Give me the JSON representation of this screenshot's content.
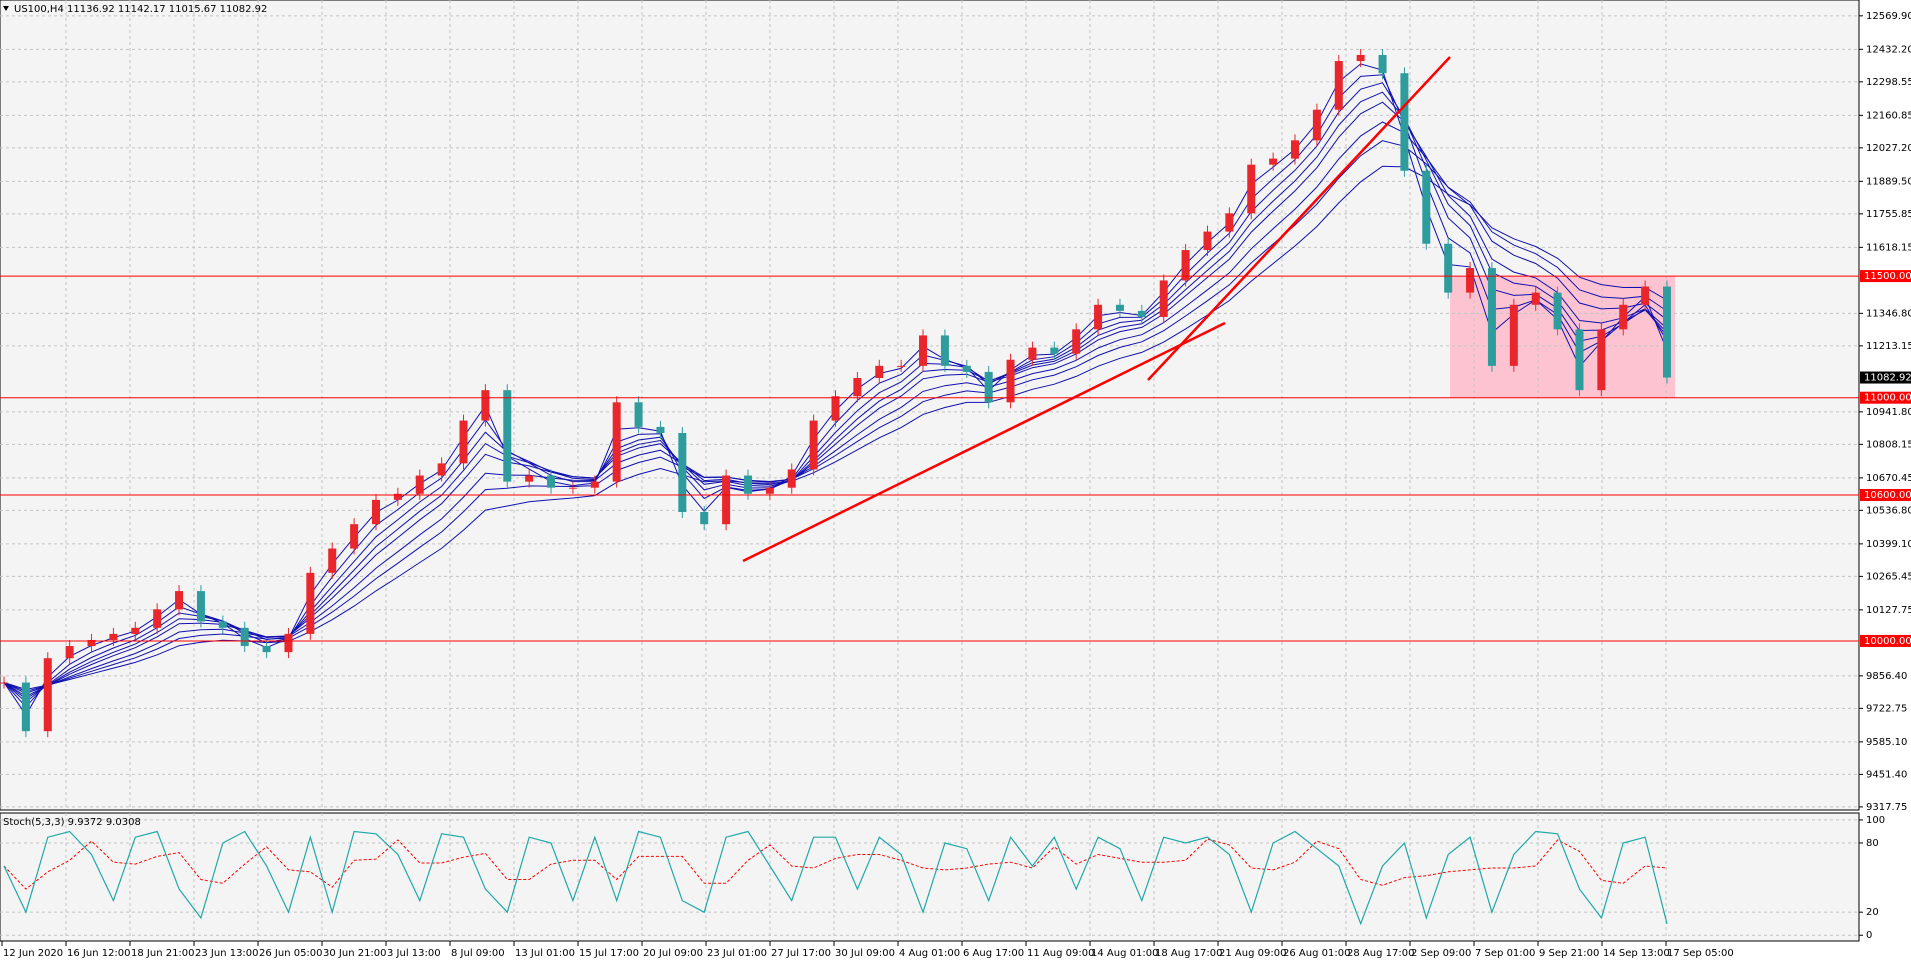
{
  "chart_data": [
    {
      "type": "candlestick",
      "title": "US100,H4  11136.92 11142.17 11015.67 11082.92",
      "values": [
        9829,
        9629,
        9929,
        9979,
        10004,
        10029,
        10054,
        10130,
        10205,
        10080,
        10054,
        9979,
        9954,
        10029,
        10280,
        10380,
        10480,
        10580,
        10605,
        10680,
        10730,
        10906,
        11031,
        10655,
        10680,
        10630,
        10630,
        10655,
        10981,
        10880,
        10855,
        10530,
        10480,
        10680,
        10605,
        10630,
        10705,
        10906,
        11006,
        11081,
        11131,
        11131,
        11256,
        11131,
        11106,
        10981,
        11156,
        11206,
        11181,
        11281,
        11382,
        11357,
        11332,
        11482,
        11607,
        11683,
        11758,
        11958,
        11983,
        12058,
        12184,
        12384,
        12409,
        12334,
        11933,
        11633,
        11432,
        11533,
        11131,
        11382,
        11432,
        11281,
        11031,
        11281,
        11382,
        11457,
        11082.92
      ],
      "up_color": "#e8262c",
      "down_color": "#2e9c9c",
      "ylim": [
        9305,
        12635
      ],
      "yticks": [
        {
          "value": 12569.9,
          "label": "12569.90"
        },
        {
          "value": 12432.2,
          "label": "12432.20"
        },
        {
          "value": 12298.55,
          "label": "12298.55"
        },
        {
          "value": 12160.85,
          "label": "12160.85"
        },
        {
          "value": 12027.2,
          "label": "12027.20"
        },
        {
          "value": 11889.5,
          "label": "11889.50"
        },
        {
          "value": 11755.85,
          "label": "11755.85"
        },
        {
          "value": 11618.15,
          "label": "11618.15"
        },
        {
          "value": 11346.8,
          "label": "11346.80"
        },
        {
          "value": 11213.15,
          "label": "11213.15"
        },
        {
          "value": 10941.8,
          "label": "10941.80"
        },
        {
          "value": 10808.15,
          "label": "10808.15"
        },
        {
          "value": 10670.45,
          "label": "10670.45"
        },
        {
          "value": 10536.8,
          "label": "10536.80"
        },
        {
          "value": 10399.1,
          "label": "10399.10"
        },
        {
          "value": 10265.45,
          "label": "10265.45"
        },
        {
          "value": 10127.75,
          "label": "10127.75"
        },
        {
          "value": 9856.4,
          "label": "9856.40"
        },
        {
          "value": 9722.75,
          "label": "9722.75"
        },
        {
          "value": 9585.1,
          "label": "9585.10"
        },
        {
          "value": 9451.4,
          "label": "9451.40"
        },
        {
          "value": 9317.75,
          "label": "9317.75"
        }
      ],
      "levels": [
        {
          "value": 11500,
          "label": "11500.00"
        },
        {
          "value": 11000,
          "label": "11000.00"
        },
        {
          "value": 10600,
          "label": "10600.00"
        },
        {
          "value": 10000,
          "label": "10000.00"
        }
      ],
      "level_color": "#ff0000",
      "last_price": 11082.92,
      "ma_color": "#1010b0",
      "grid": true,
      "time_labels": [
        "12 Jun 2020",
        "16 Jun 12:00",
        "18 Jun 21:00",
        "23 Jun 13:00",
        "26 Jun 05:00",
        "30 Jun 21:00",
        "3 Jul 13:00",
        "8 Jul 09:00",
        "13 Jul 01:00",
        "15 Jul 17:00",
        "20 Jul 09:00",
        "23 Jul 01:00",
        "27 Jul 17:00",
        "30 Jul 09:00",
        "4 Aug 01:00",
        "6 Aug 17:00",
        "11 Aug 09:00",
        "14 Aug 01:00",
        "18 Aug 17:00",
        "21 Aug 09:00",
        "26 Aug 01:00",
        "28 Aug 17:00",
        "2 Sep 09:00",
        "7 Sep 01:00",
        "9 Sep 21:00",
        "14 Sep 13:00",
        "17 Sep 05:00"
      ]
    },
    {
      "type": "line",
      "title": "Stoch(5,3,3) 9.9372 9.0308",
      "series": [
        {
          "color": "#20a8a8",
          "values": [
            60,
            20,
            85,
            90,
            70,
            30,
            85,
            90,
            40,
            15,
            80,
            90,
            60,
            20,
            85,
            20,
            90,
            88,
            70,
            30,
            88,
            85,
            40,
            20,
            85,
            80,
            30,
            85,
            30,
            90,
            85,
            30,
            20,
            85,
            90,
            60,
            30,
            85,
            85,
            40,
            85,
            70,
            20,
            80,
            75,
            30,
            85,
            60,
            85,
            40,
            85,
            75,
            30,
            85,
            80,
            85,
            70,
            20,
            80,
            90,
            75,
            60,
            10,
            60,
            80,
            15,
            70,
            85,
            20,
            70,
            90,
            88,
            40,
            15,
            80,
            85,
            9.94
          ]
        }
      ],
      "signal_color": "#ff0000",
      "ylim": [
        -5,
        106
      ],
      "yticks": [
        0,
        20,
        80,
        100
      ]
    }
  ]
}
